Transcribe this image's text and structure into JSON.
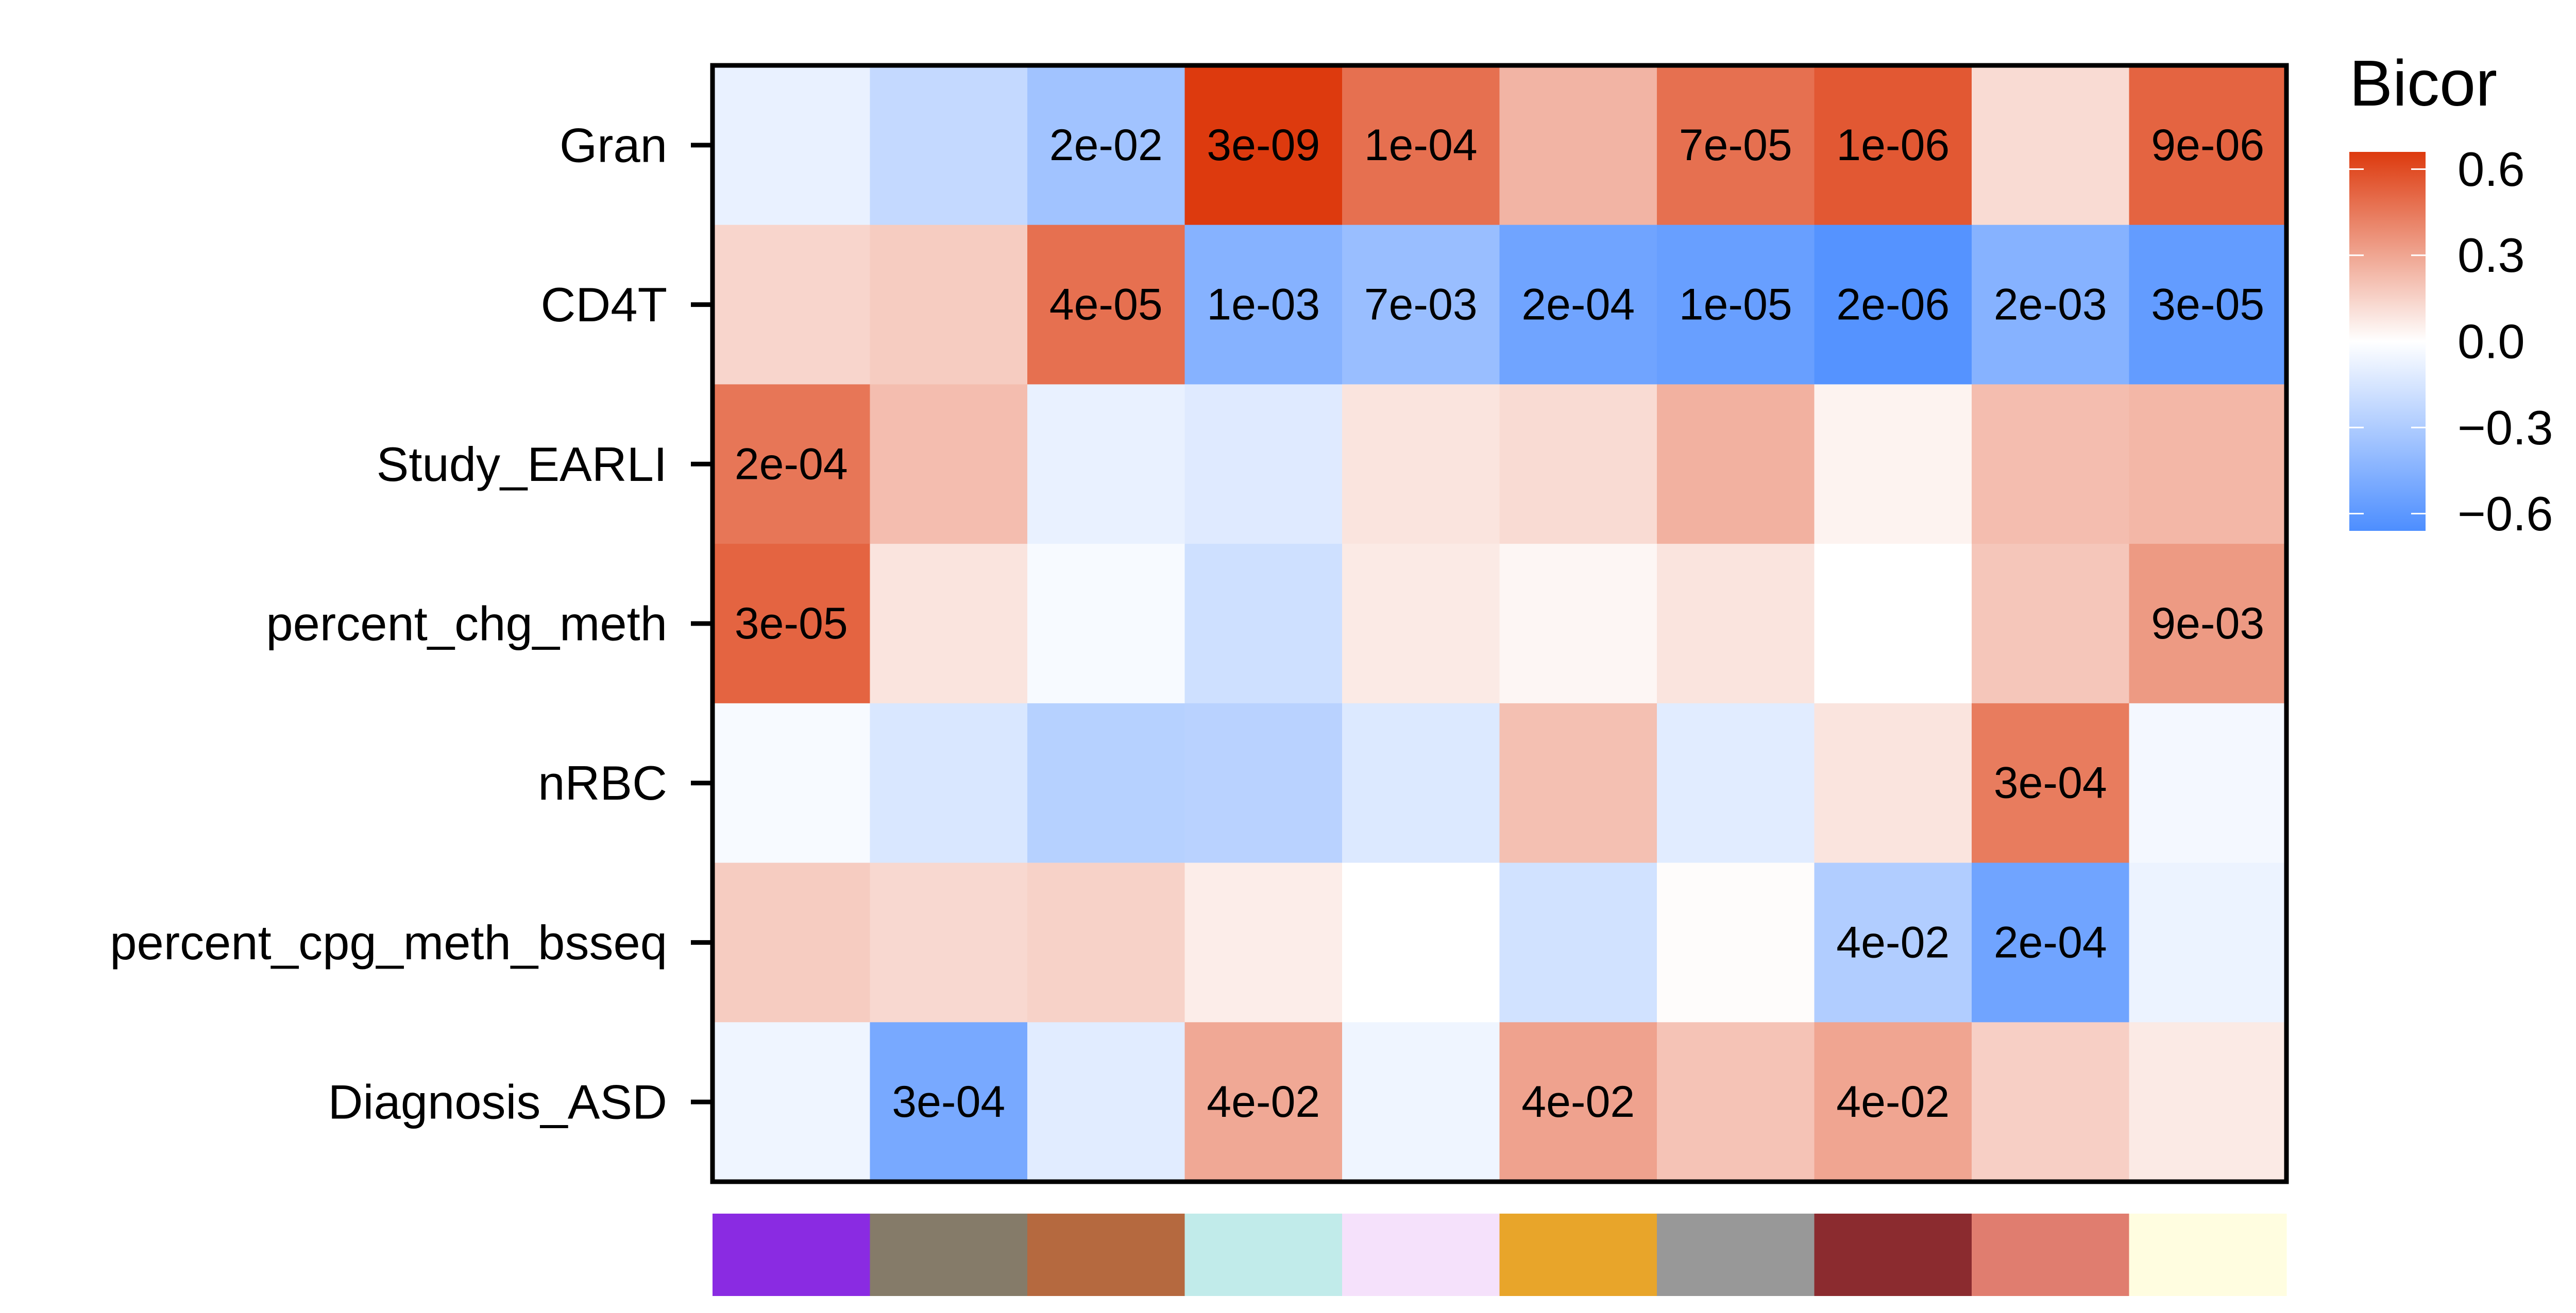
{
  "chart_data": {
    "type": "heatmap",
    "title": "",
    "xlabel": "",
    "ylabel": "",
    "rows": [
      "Gran",
      "CD4T",
      "Study_EARLI",
      "percent_chg_meth",
      "nRBC",
      "percent_cpg_meth_bsseq",
      "Diagnosis_ASD"
    ],
    "columns": [
      "purple",
      "grey-brown",
      "sienna",
      "pale-turquoise",
      "lavender",
      "goldenrod",
      "grey",
      "dark-red",
      "salmon",
      "light-yellow"
    ],
    "column_colors": [
      "#8a2be2",
      "#857b69",
      "#b5693f",
      "#c1ebea",
      "#f5e1fb",
      "#e8a52a",
      "#989898",
      "#8b2b2f",
      "#e07d6f",
      "#fffde0"
    ],
    "values": [
      [
        -0.08,
        -0.22,
        -0.35,
        0.66,
        0.48,
        0.25,
        0.48,
        0.56,
        0.12,
        0.52
      ],
      [
        0.14,
        0.17,
        0.48,
        -0.45,
        -0.38,
        -0.53,
        -0.56,
        -0.63,
        -0.45,
        -0.58
      ],
      [
        0.46,
        0.22,
        -0.08,
        -0.12,
        0.09,
        0.12,
        0.26,
        0.04,
        0.22,
        0.24
      ],
      [
        0.52,
        0.09,
        -0.03,
        -0.18,
        0.07,
        0.03,
        0.09,
        0.0,
        0.19,
        0.34
      ],
      [
        -0.03,
        -0.14,
        -0.27,
        -0.26,
        -0.13,
        0.21,
        -0.11,
        0.09,
        0.44,
        -0.04
      ],
      [
        0.17,
        0.13,
        0.15,
        0.06,
        0.0,
        -0.17,
        0.01,
        -0.29,
        -0.53,
        -0.07
      ],
      [
        -0.06,
        -0.5,
        -0.11,
        0.29,
        -0.06,
        0.31,
        0.2,
        0.3,
        0.16,
        0.07
      ]
    ],
    "pvalues": [
      [
        "",
        "",
        "2e-02",
        "3e-09",
        "1e-04",
        "",
        "7e-05",
        "1e-06",
        "",
        "9e-06"
      ],
      [
        "",
        "",
        "4e-05",
        "1e-03",
        "7e-03",
        "2e-04",
        "1e-05",
        "2e-06",
        "2e-03",
        "3e-05"
      ],
      [
        "2e-04",
        "",
        "",
        "",
        "",
        "",
        "",
        "",
        "",
        ""
      ],
      [
        "3e-05",
        "",
        "",
        "",
        "",
        "",
        "",
        "",
        "",
        "9e-03"
      ],
      [
        "",
        "",
        "",
        "",
        "",
        "",
        "",
        "",
        "3e-04",
        ""
      ],
      [
        "",
        "",
        "",
        "",
        "",
        "",
        "",
        "4e-02",
        "2e-04",
        ""
      ],
      [
        "",
        "3e-04",
        "",
        "4e-02",
        "",
        "4e-02",
        "",
        "4e-02",
        "",
        ""
      ]
    ],
    "colorscale": {
      "low": "#4d8eff",
      "mid": "#ffffff",
      "high": "#dd3a0e",
      "lim": [
        -0.66,
        0.66
      ]
    },
    "legend": {
      "title": "Bicor",
      "ticks": [
        "0.6",
        "0.3",
        "0.0",
        "−0.3",
        "−0.6"
      ],
      "tick_values": [
        0.6,
        0.3,
        0.0,
        -0.3,
        -0.6
      ],
      "placement": "right"
    },
    "grid": false
  }
}
